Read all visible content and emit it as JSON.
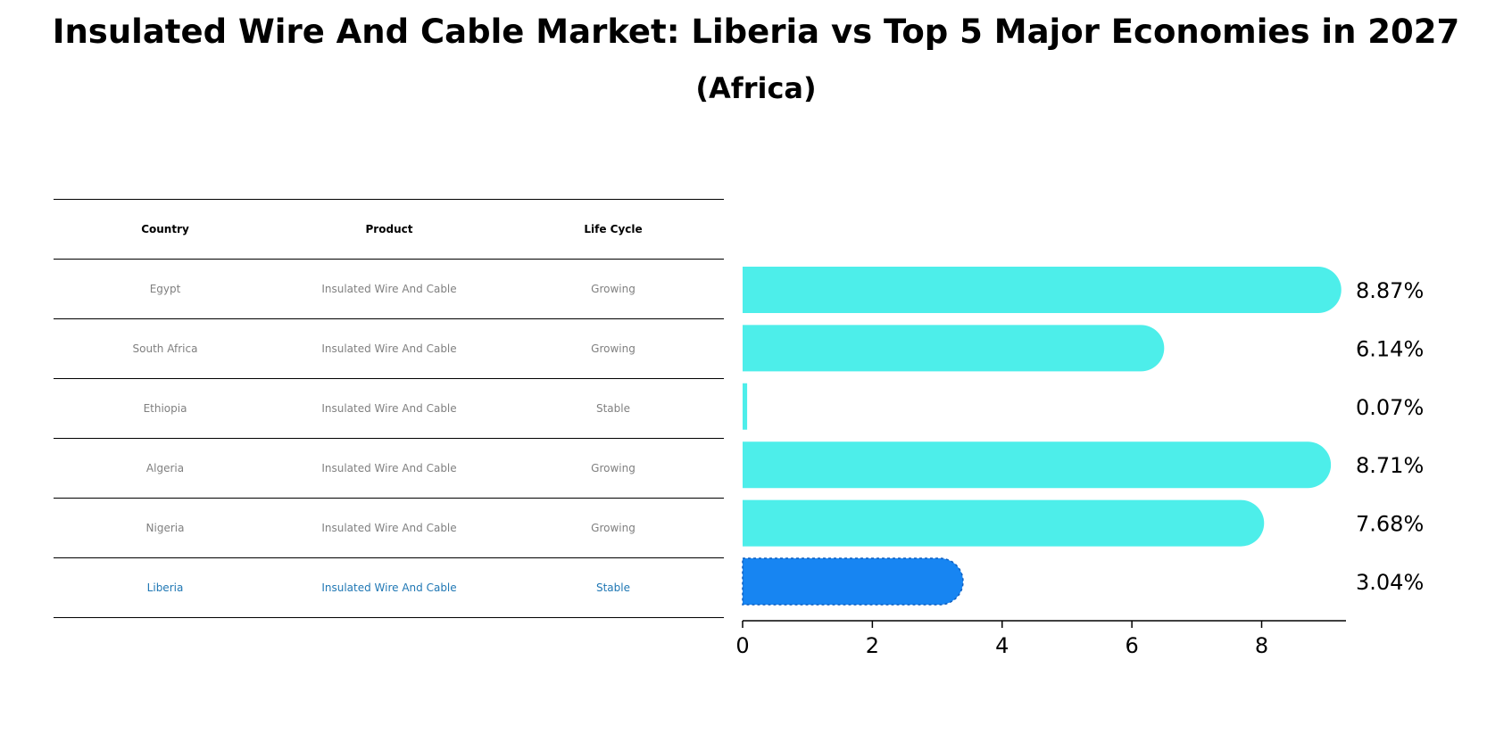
{
  "header": {
    "title": "Insulated Wire And Cable Market: Liberia vs Top 5 Major Economies in 2027",
    "subtitle": "(Africa)"
  },
  "table": {
    "columns": [
      "Country",
      "Product",
      "Life Cycle"
    ],
    "rows": [
      [
        "Egypt",
        "Insulated Wire And Cable",
        "Growing"
      ],
      [
        "South Africa",
        "Insulated Wire And Cable",
        "Growing"
      ],
      [
        "Ethiopia",
        "Insulated Wire And Cable",
        "Stable"
      ],
      [
        "Algeria",
        "Insulated Wire And Cable",
        "Growing"
      ],
      [
        "Nigeria",
        "Insulated Wire And Cable",
        "Growing"
      ],
      [
        "Liberia",
        "Insulated Wire And Cable",
        "Stable"
      ]
    ]
  },
  "chart_data": {
    "type": "bar",
    "orientation": "horizontal",
    "categories": [
      "Egypt",
      "South Africa",
      "Ethiopia",
      "Algeria",
      "Nigeria",
      "Liberia"
    ],
    "values": [
      8.87,
      6.14,
      0.07,
      8.71,
      7.68,
      3.04
    ],
    "value_labels": [
      "8.87%",
      "6.14%",
      "0.07%",
      "8.71%",
      "7.68%",
      "3.04%"
    ],
    "highlight": "Liberia",
    "xlim": [
      0,
      9.3
    ],
    "xticks": [
      0,
      2,
      4,
      6,
      8
    ],
    "colors": {
      "default": "#4deeea",
      "highlight": "#1785f2"
    },
    "grid": false
  }
}
